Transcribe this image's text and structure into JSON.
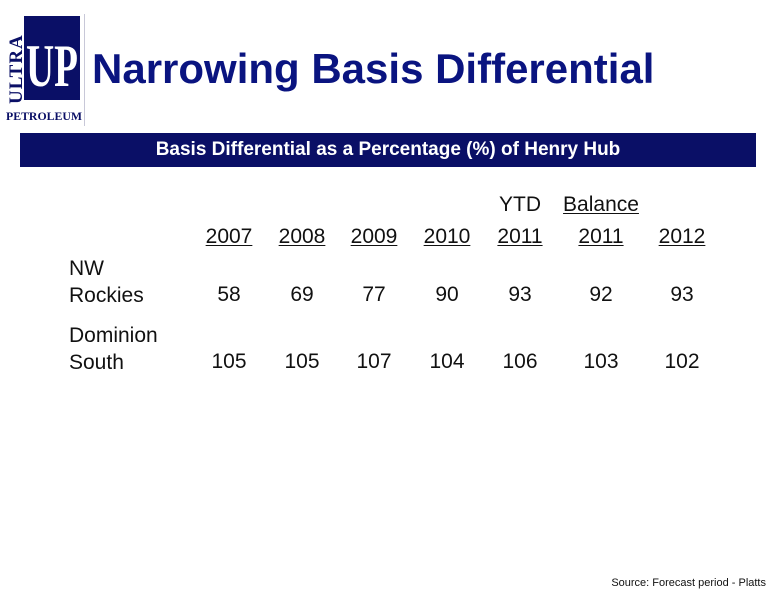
{
  "logo": {
    "brand_top": "ULTRA",
    "brand_main": "UP",
    "brand_bottom": "PETROLEUM"
  },
  "title": "Narrowing Basis Differential",
  "banner": "Basis Differential as a Percentage (%) of Henry Hub",
  "table": {
    "header_top": [
      "",
      "",
      "",
      "",
      "YTD",
      "Balance",
      ""
    ],
    "header_years": [
      "2007",
      "2008",
      "2009",
      "2010",
      "2011",
      "2011",
      "2012"
    ],
    "rows": [
      {
        "label_line1": "NW",
        "label_line2": "Rockies",
        "values": [
          "58",
          "69",
          "77",
          "90",
          "93",
          "92",
          "93"
        ]
      },
      {
        "label_line1": "Dominion",
        "label_line2": "South",
        "values": [
          "105",
          "105",
          "107",
          "104",
          "106",
          "103",
          "102"
        ]
      }
    ]
  },
  "source": "Source: Forecast period - Platts"
}
